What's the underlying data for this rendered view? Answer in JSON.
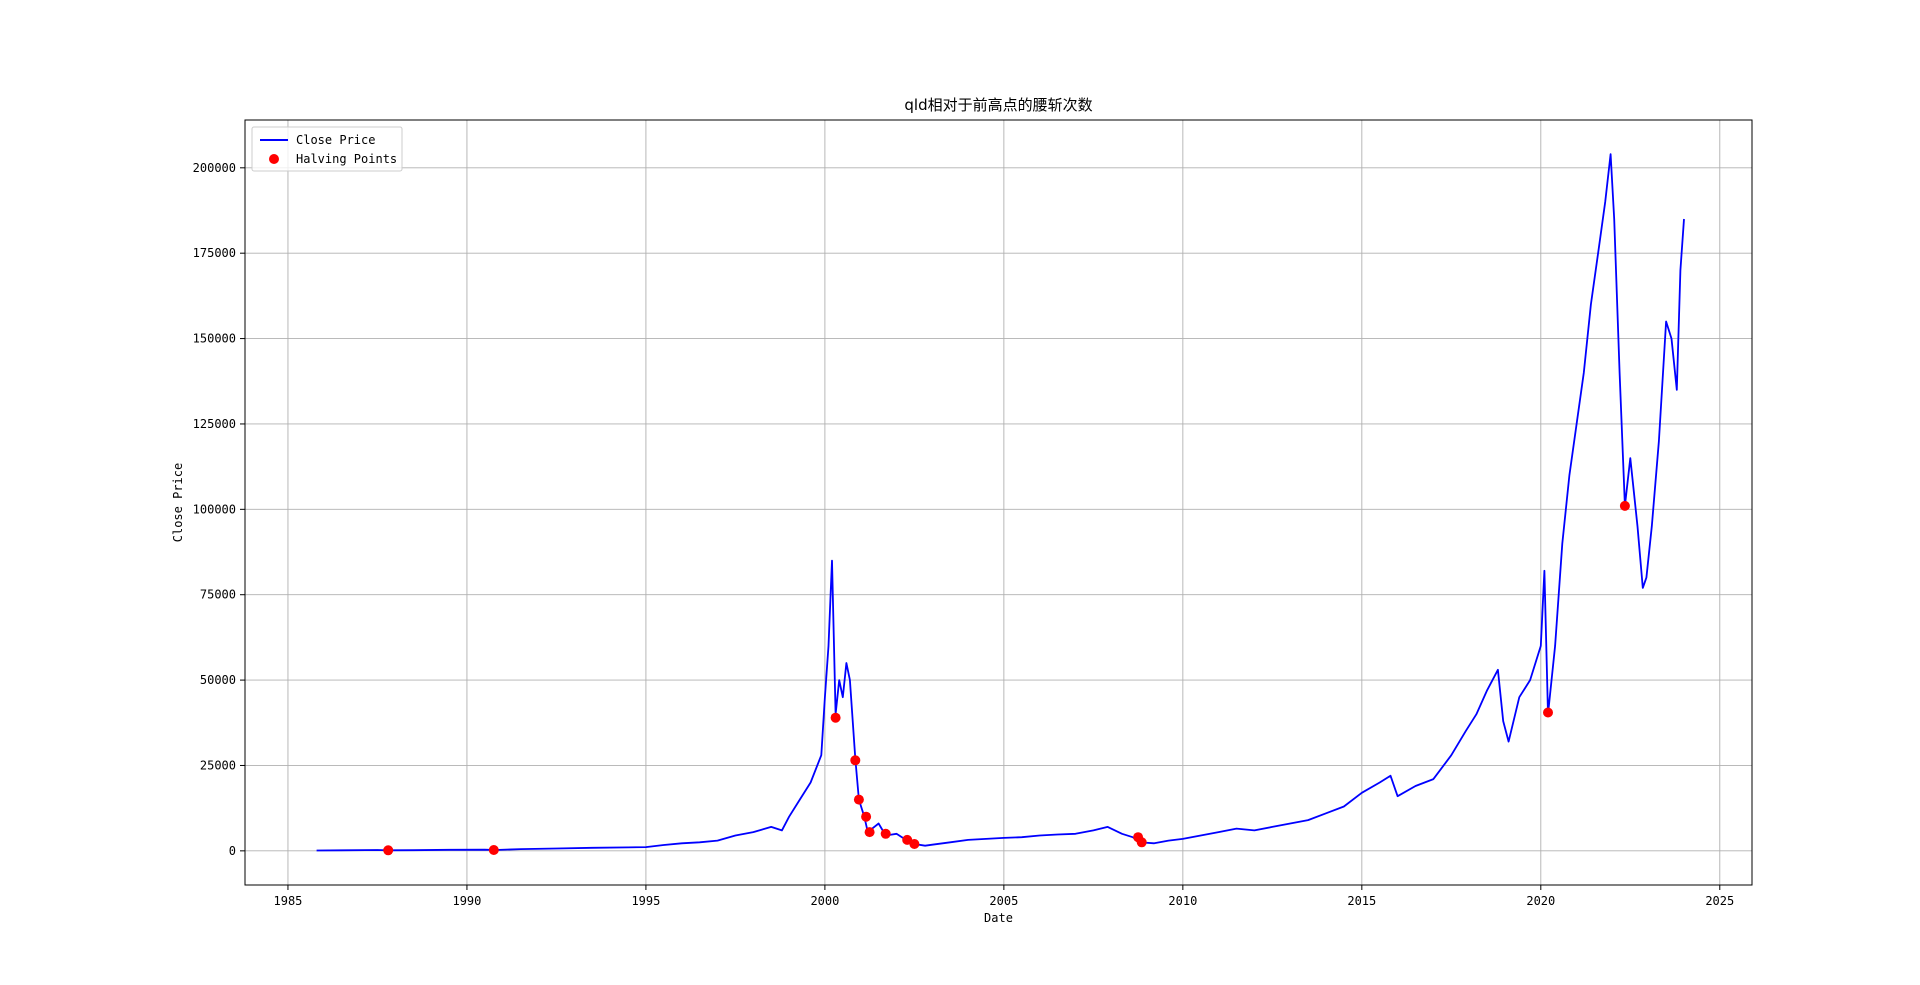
{
  "chart_data": {
    "type": "line",
    "title": "qld相对于前高点的腰斩次数",
    "xlabel": "Date",
    "ylabel": "Close Price",
    "xlim": [
      1983.8,
      2025.9
    ],
    "ylim": [
      -10000,
      214000
    ],
    "x_ticks": [
      1985,
      1990,
      1995,
      2000,
      2005,
      2010,
      2015,
      2020,
      2025
    ],
    "x_tick_labels": [
      "1985",
      "1990",
      "1995",
      "2000",
      "2005",
      "2010",
      "2015",
      "2020",
      "2025"
    ],
    "y_ticks": [
      0,
      25000,
      50000,
      75000,
      100000,
      125000,
      150000,
      175000,
      200000
    ],
    "y_tick_labels": [
      "0",
      "25000",
      "50000",
      "75000",
      "100000",
      "125000",
      "150000",
      "175000",
      "200000"
    ],
    "grid": true,
    "legend_position": "top-left",
    "series": [
      {
        "name": "Close Price",
        "kind": "line",
        "color": "#0000ff",
        "points": [
          [
            1985.8,
            100
          ],
          [
            1986.5,
            150
          ],
          [
            1987.5,
            250
          ],
          [
            1987.8,
            150
          ],
          [
            1988.5,
            200
          ],
          [
            1989.5,
            300
          ],
          [
            1990.5,
            350
          ],
          [
            1990.8,
            250
          ],
          [
            1991.5,
            500
          ],
          [
            1992.5,
            700
          ],
          [
            1993.5,
            900
          ],
          [
            1994.5,
            1000
          ],
          [
            1995.0,
            1100
          ],
          [
            1995.5,
            1700
          ],
          [
            1996.0,
            2200
          ],
          [
            1996.5,
            2500
          ],
          [
            1997.0,
            3000
          ],
          [
            1997.5,
            4500
          ],
          [
            1998.0,
            5500
          ],
          [
            1998.5,
            7000
          ],
          [
            1998.8,
            6000
          ],
          [
            1999.0,
            10000
          ],
          [
            1999.3,
            15000
          ],
          [
            1999.6,
            20000
          ],
          [
            1999.9,
            28000
          ],
          [
            2000.0,
            45000
          ],
          [
            2000.1,
            60000
          ],
          [
            2000.2,
            85000
          ],
          [
            2000.3,
            40000
          ],
          [
            2000.4,
            50000
          ],
          [
            2000.5,
            45000
          ],
          [
            2000.6,
            55000
          ],
          [
            2000.7,
            50000
          ],
          [
            2000.85,
            27000
          ],
          [
            2000.95,
            15000
          ],
          [
            2001.1,
            10000
          ],
          [
            2001.2,
            5500
          ],
          [
            2001.5,
            8000
          ],
          [
            2001.7,
            4500
          ],
          [
            2002.0,
            5000
          ],
          [
            2002.3,
            3000
          ],
          [
            2002.5,
            2000
          ],
          [
            2002.8,
            1500
          ],
          [
            2003.0,
            1800
          ],
          [
            2003.5,
            2500
          ],
          [
            2004.0,
            3200
          ],
          [
            2004.5,
            3500
          ],
          [
            2005.0,
            3800
          ],
          [
            2005.5,
            4000
          ],
          [
            2006.0,
            4500
          ],
          [
            2006.5,
            4800
          ],
          [
            2007.0,
            5000
          ],
          [
            2007.5,
            6000
          ],
          [
            2007.9,
            7000
          ],
          [
            2008.3,
            5000
          ],
          [
            2008.6,
            4000
          ],
          [
            2008.8,
            2500
          ],
          [
            2009.2,
            2200
          ],
          [
            2009.6,
            3000
          ],
          [
            2010.0,
            3500
          ],
          [
            2010.5,
            4500
          ],
          [
            2011.0,
            5500
          ],
          [
            2011.5,
            6500
          ],
          [
            2012.0,
            6000
          ],
          [
            2012.5,
            7000
          ],
          [
            2013.0,
            8000
          ],
          [
            2013.5,
            9000
          ],
          [
            2014.0,
            11000
          ],
          [
            2014.5,
            13000
          ],
          [
            2015.0,
            17000
          ],
          [
            2015.5,
            20000
          ],
          [
            2015.8,
            22000
          ],
          [
            2016.0,
            16000
          ],
          [
            2016.5,
            19000
          ],
          [
            2017.0,
            21000
          ],
          [
            2017.5,
            28000
          ],
          [
            2017.9,
            35000
          ],
          [
            2018.2,
            40000
          ],
          [
            2018.5,
            47000
          ],
          [
            2018.8,
            53000
          ],
          [
            2018.95,
            38000
          ],
          [
            2019.1,
            32000
          ],
          [
            2019.4,
            45000
          ],
          [
            2019.7,
            50000
          ],
          [
            2020.0,
            60000
          ],
          [
            2020.1,
            82000
          ],
          [
            2020.2,
            40000
          ],
          [
            2020.4,
            60000
          ],
          [
            2020.6,
            90000
          ],
          [
            2020.8,
            110000
          ],
          [
            2021.0,
            125000
          ],
          [
            2021.2,
            140000
          ],
          [
            2021.4,
            160000
          ],
          [
            2021.6,
            175000
          ],
          [
            2021.8,
            190000
          ],
          [
            2021.95,
            204000
          ],
          [
            2022.05,
            185000
          ],
          [
            2022.2,
            140000
          ],
          [
            2022.35,
            101000
          ],
          [
            2022.5,
            115000
          ],
          [
            2022.7,
            95000
          ],
          [
            2022.85,
            77000
          ],
          [
            2022.95,
            80000
          ],
          [
            2023.1,
            95000
          ],
          [
            2023.3,
            120000
          ],
          [
            2023.5,
            155000
          ],
          [
            2023.65,
            150000
          ],
          [
            2023.8,
            135000
          ],
          [
            2023.9,
            170000
          ],
          [
            2024.0,
            185000
          ]
        ]
      },
      {
        "name": "Halving Points",
        "kind": "scatter",
        "color": "#ff0000",
        "points": [
          [
            1987.8,
            150
          ],
          [
            1990.75,
            250
          ],
          [
            2000.3,
            39000
          ],
          [
            2000.85,
            26500
          ],
          [
            2000.95,
            15000
          ],
          [
            2001.15,
            10000
          ],
          [
            2001.25,
            5500
          ],
          [
            2001.7,
            5000
          ],
          [
            2002.3,
            3200
          ],
          [
            2002.5,
            2000
          ],
          [
            2008.75,
            4000
          ],
          [
            2008.85,
            2500
          ],
          [
            2020.2,
            40500
          ],
          [
            2022.35,
            101000
          ]
        ]
      }
    ]
  }
}
